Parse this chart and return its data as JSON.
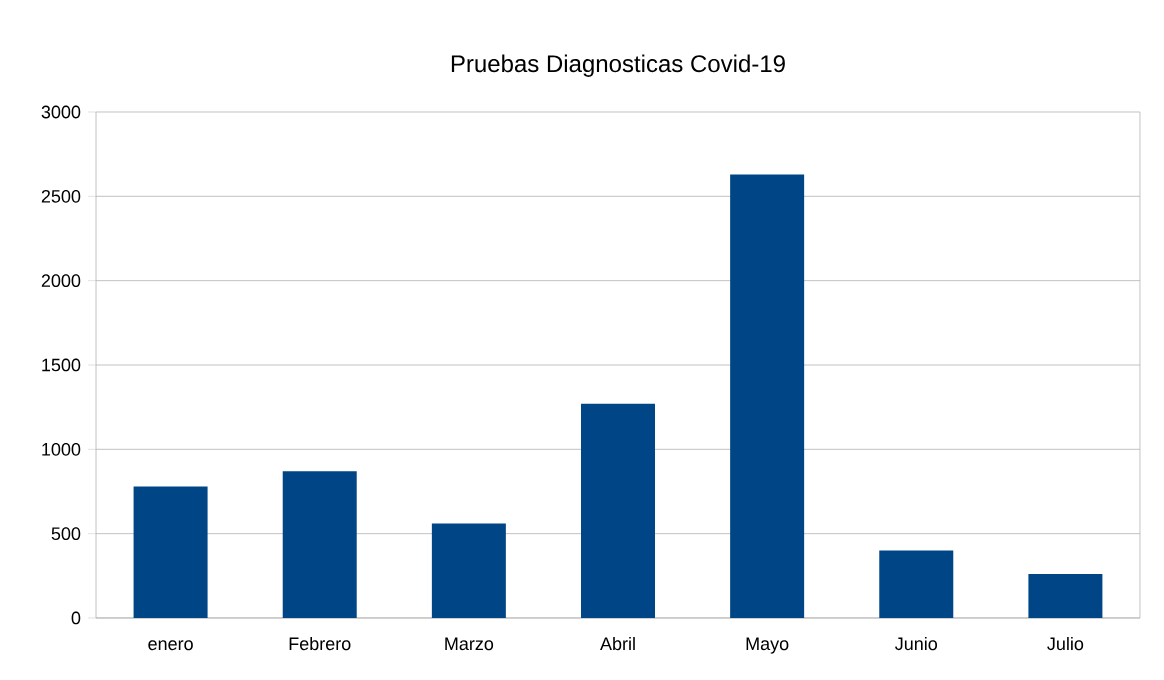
{
  "chart_data": {
    "type": "bar",
    "title": "Pruebas Diagnosticas Covid-19",
    "categories": [
      "enero",
      "Febrero",
      "Marzo",
      "Abril",
      "Mayo",
      "Junio",
      "Julio"
    ],
    "values": [
      780,
      870,
      560,
      1270,
      2630,
      400,
      260
    ],
    "color": "#004586",
    "ylim": [
      0,
      3000
    ],
    "yticks": [
      0,
      500,
      1000,
      1500,
      2000,
      2500,
      3000
    ],
    "grid": "y"
  }
}
